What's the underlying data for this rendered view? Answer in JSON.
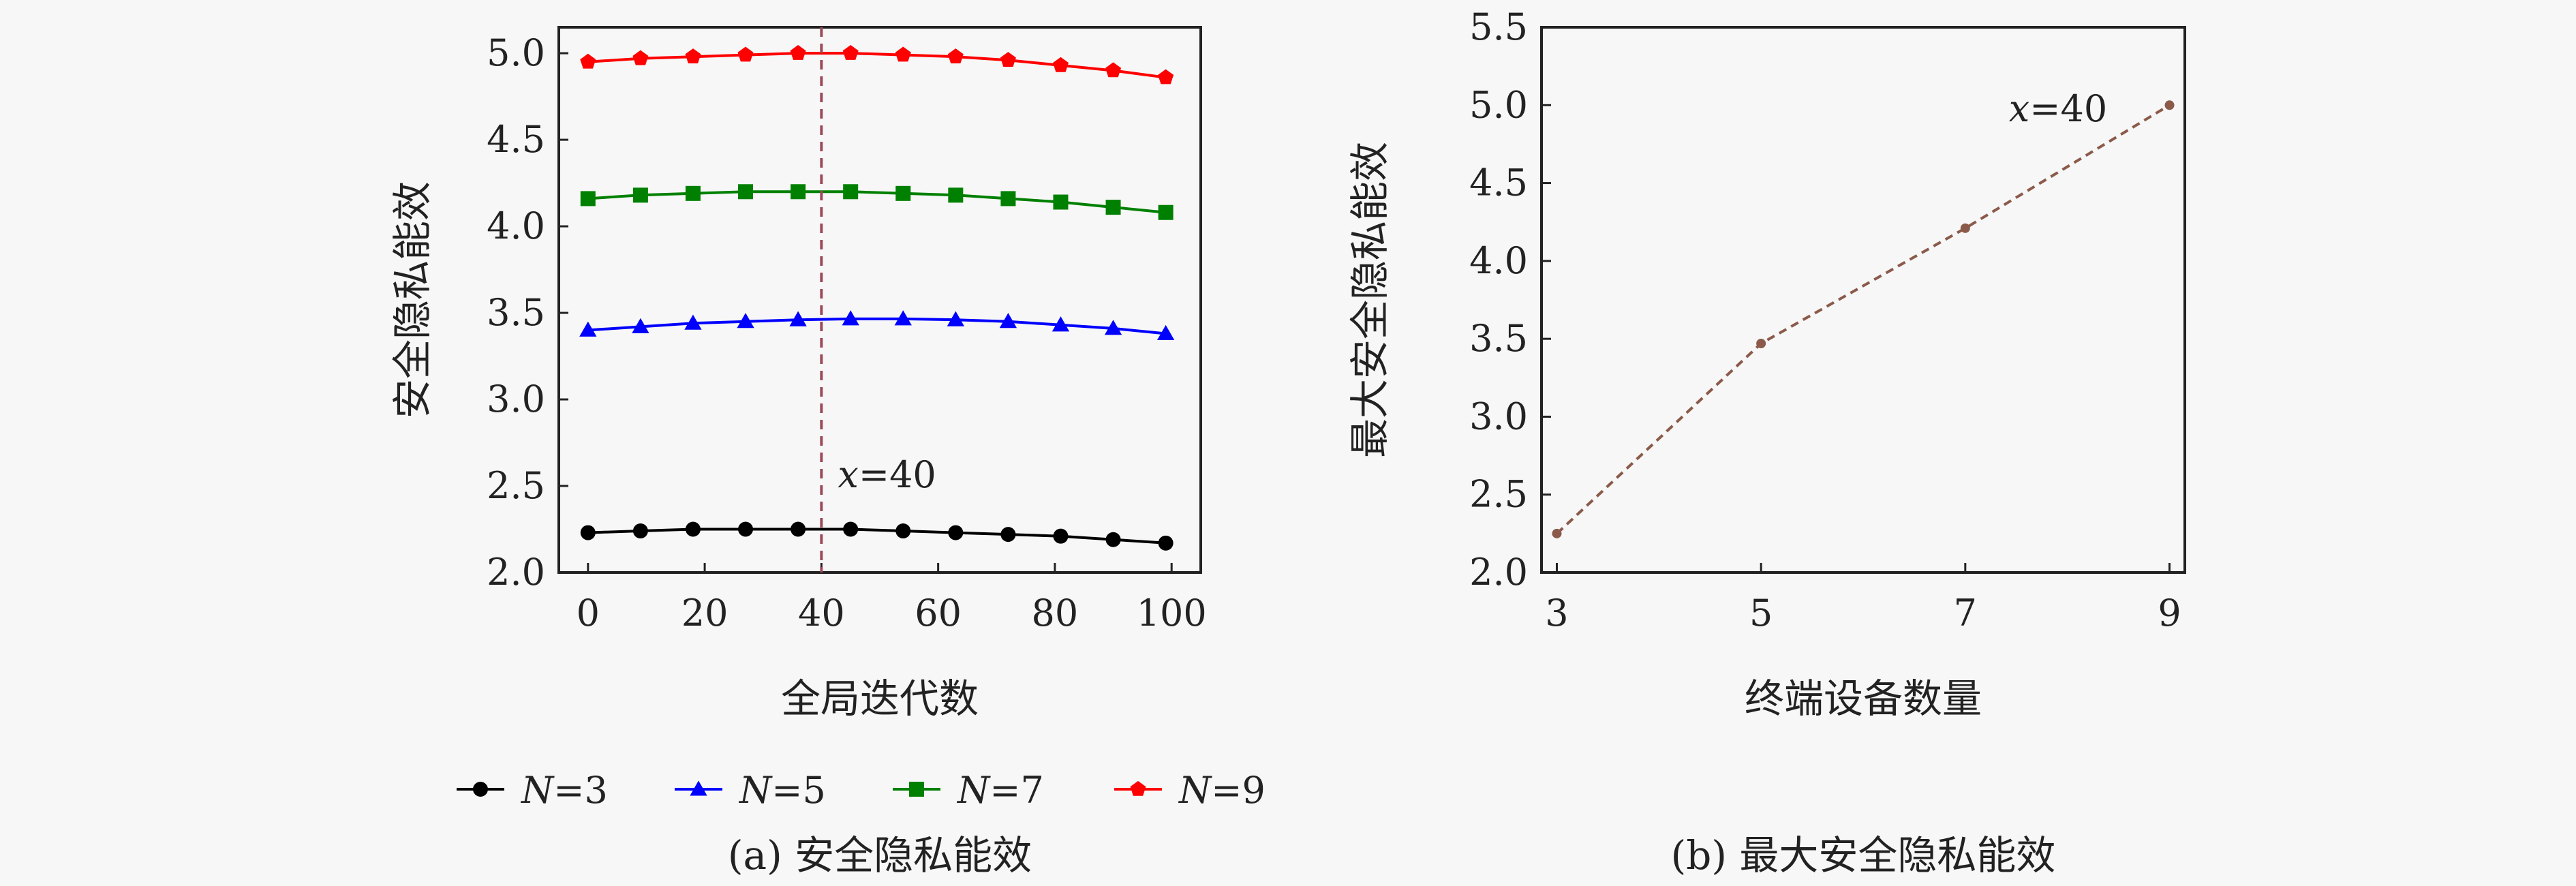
{
  "colors": {
    "N=3": "#000000",
    "N=5": "#0000ff",
    "N=7": "#008000",
    "N=9": "#ff0000",
    "vline": "#9b4a5a",
    "rightline": "#8b5a4a"
  },
  "chart_data": [
    {
      "id": "a",
      "type": "line",
      "caption": "(a) 安全隐私能效",
      "xlabel": "全局迭代数",
      "ylabel": "安全隐私能效",
      "xlim": [
        -5,
        105
      ],
      "ylim": [
        2.0,
        5.15
      ],
      "xticks": [
        0,
        20,
        40,
        60,
        80,
        100
      ],
      "xtick_labels": [
        "0",
        "20",
        "40",
        "60",
        "80",
        "100"
      ],
      "yticks": [
        2.0,
        2.5,
        3.0,
        3.5,
        4.0,
        4.5,
        5.0
      ],
      "ytick_labels": [
        "2.0",
        "2.5",
        "3.0",
        "3.5",
        "4.0",
        "4.5",
        "5.0"
      ],
      "x": [
        0,
        9,
        18,
        27,
        36,
        45,
        54,
        63,
        72,
        81,
        90,
        99
      ],
      "series": [
        {
          "name": "N=3",
          "name_italic": "N",
          "name_rest": "=3",
          "marker": "circle",
          "values": [
            2.23,
            2.24,
            2.25,
            2.25,
            2.25,
            2.25,
            2.24,
            2.23,
            2.22,
            2.21,
            2.19,
            2.17
          ]
        },
        {
          "name": "N=5",
          "name_italic": "N",
          "name_rest": "=5",
          "marker": "triangle",
          "values": [
            3.4,
            3.42,
            3.44,
            3.45,
            3.46,
            3.465,
            3.465,
            3.46,
            3.45,
            3.43,
            3.41,
            3.38
          ]
        },
        {
          "name": "N=7",
          "name_italic": "N",
          "name_rest": "=7",
          "marker": "square",
          "values": [
            4.16,
            4.18,
            4.19,
            4.2,
            4.2,
            4.2,
            4.19,
            4.18,
            4.16,
            4.14,
            4.11,
            4.08
          ]
        },
        {
          "name": "N=9",
          "name_italic": "N",
          "name_rest": "=9",
          "marker": "pentagon",
          "values": [
            4.95,
            4.97,
            4.98,
            4.99,
            5.0,
            5.0,
            4.99,
            4.98,
            4.96,
            4.93,
            4.9,
            4.86
          ]
        }
      ],
      "vline": {
        "x": 40,
        "label_italic": "x",
        "label_rest": "=40"
      }
    },
    {
      "id": "b",
      "type": "line",
      "caption": "(b) 最大安全隐私能效",
      "xlabel": "终端设备数量",
      "ylabel": "最大安全隐私能效",
      "xlim": [
        2.85,
        9.15
      ],
      "ylim": [
        2.0,
        5.5
      ],
      "xticks": [
        3,
        5,
        7,
        9
      ],
      "xtick_labels": [
        "3",
        "5",
        "7",
        "9"
      ],
      "yticks": [
        2.0,
        2.5,
        3.0,
        3.5,
        4.0,
        4.5,
        5.0,
        5.5
      ],
      "ytick_labels": [
        "2.0",
        "2.5",
        "3.0",
        "3.5",
        "4.0",
        "4.5",
        "5.0",
        "5.5"
      ],
      "x": [
        3,
        5,
        7,
        9
      ],
      "values": [
        2.25,
        3.47,
        4.21,
        5.0
      ],
      "annotation": {
        "italic": "x",
        "rest": "=40"
      }
    }
  ]
}
